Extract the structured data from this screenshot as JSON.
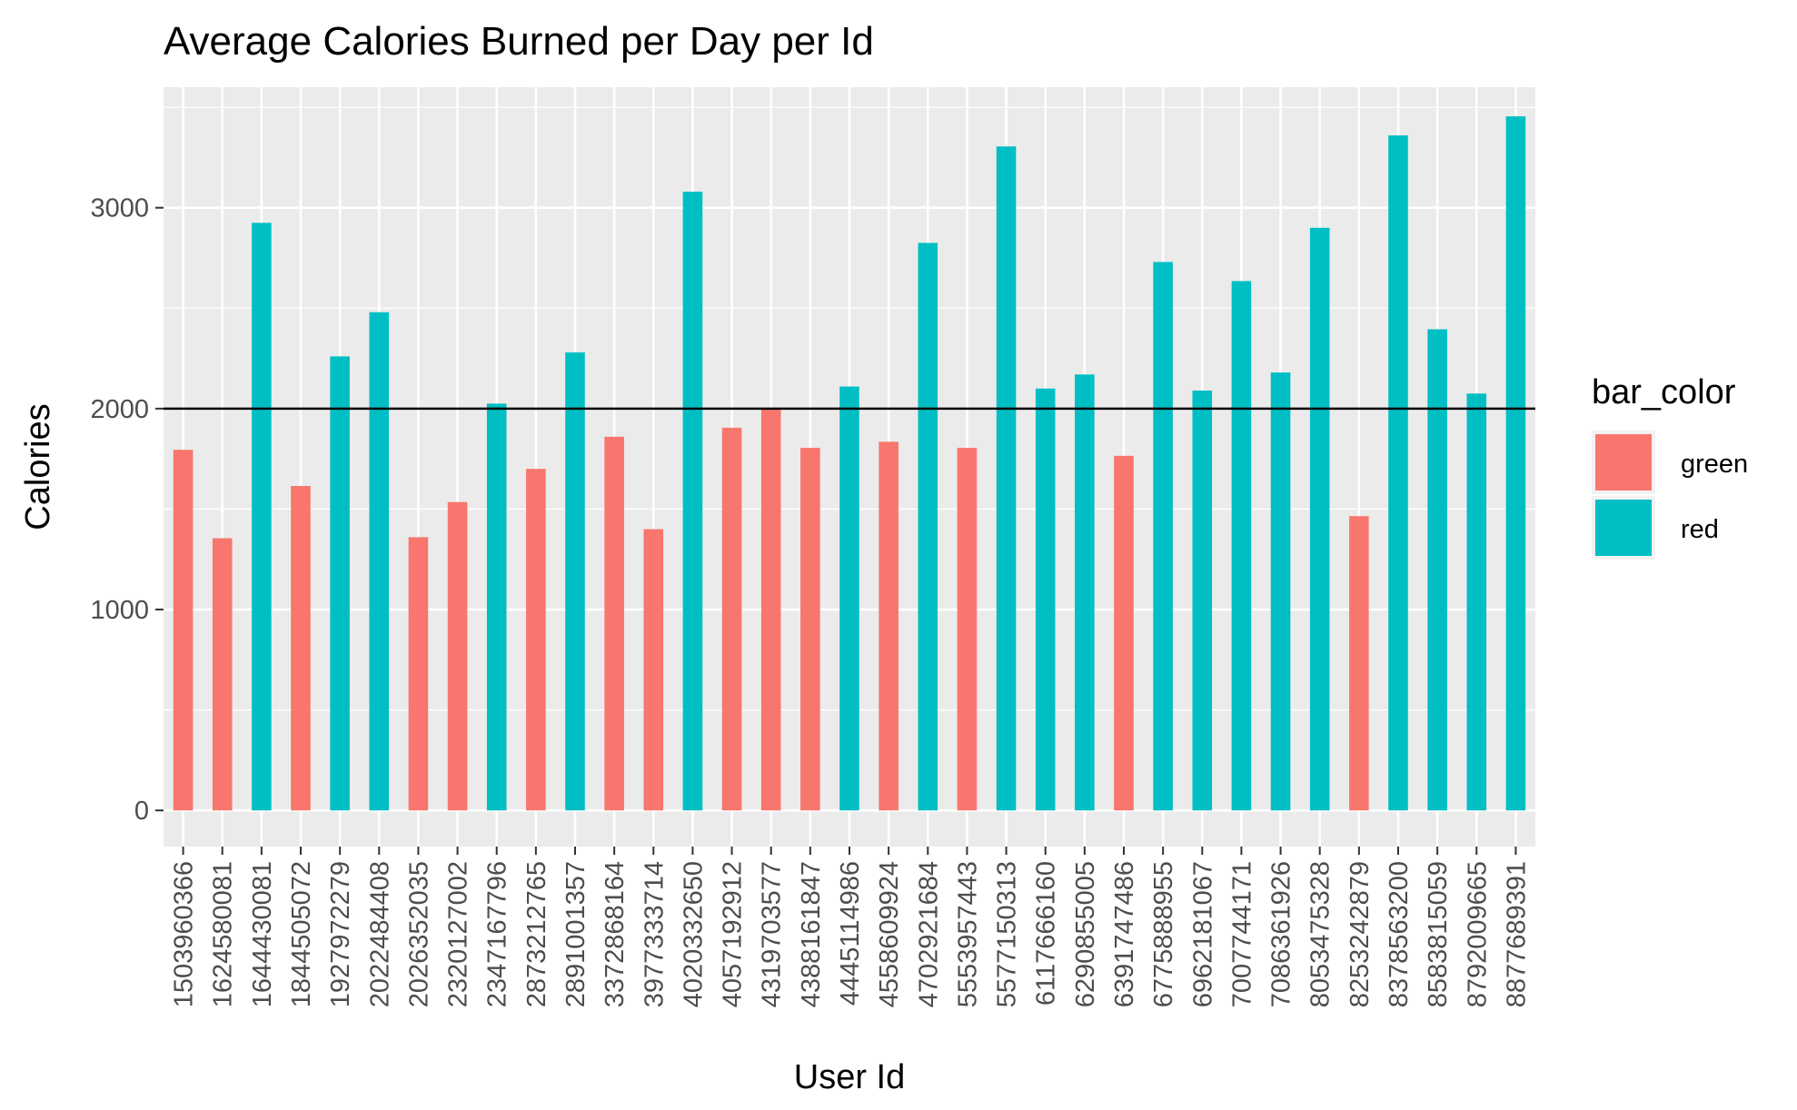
{
  "chart_data": {
    "type": "bar",
    "title": "Average Calories Burned per Day per Id",
    "xlabel": "User Id",
    "ylabel": "Calories",
    "ylim": [
      -180,
      3600
    ],
    "yticks": [
      0,
      1000,
      2000,
      3000
    ],
    "reference_line": 2000,
    "grid": true,
    "legend": {
      "title": "bar_color",
      "placement": "right",
      "entries": [
        {
          "label": "green",
          "color": "#F8766D"
        },
        {
          "label": "red",
          "color": "#00BFC4"
        }
      ]
    },
    "categories": [
      "1503960366",
      "1624580081",
      "1644430081",
      "1844505072",
      "1927972279",
      "2022484408",
      "2026352035",
      "2320127002",
      "2347167796",
      "2873212765",
      "2891001357",
      "3372868164",
      "3977333714",
      "4020332650",
      "4057192912",
      "4319703577",
      "4388161847",
      "4445114986",
      "4558609924",
      "4702921684",
      "5553957443",
      "5577150313",
      "6117666160",
      "6290855005",
      "6391747486",
      "6775888955",
      "6962181067",
      "7007744171",
      "7086361926",
      "8053475328",
      "8253242879",
      "8378563200",
      "8583815059",
      "8792009665",
      "8877689391"
    ],
    "values": [
      1795,
      1355,
      2925,
      1615,
      2260,
      2480,
      1360,
      1535,
      2025,
      1700,
      2280,
      1860,
      1400,
      3080,
      1905,
      2000,
      1805,
      2110,
      1835,
      2825,
      1805,
      3305,
      2100,
      2170,
      1765,
      2730,
      2090,
      2635,
      2180,
      2900,
      1465,
      3360,
      2395,
      2075,
      3455
    ],
    "bar_colors": [
      "green",
      "green",
      "red",
      "green",
      "red",
      "red",
      "green",
      "green",
      "red",
      "green",
      "red",
      "green",
      "green",
      "red",
      "green",
      "green",
      "green",
      "red",
      "green",
      "red",
      "green",
      "red",
      "red",
      "red",
      "green",
      "red",
      "red",
      "red",
      "red",
      "red",
      "green",
      "red",
      "red",
      "red",
      "red"
    ]
  }
}
